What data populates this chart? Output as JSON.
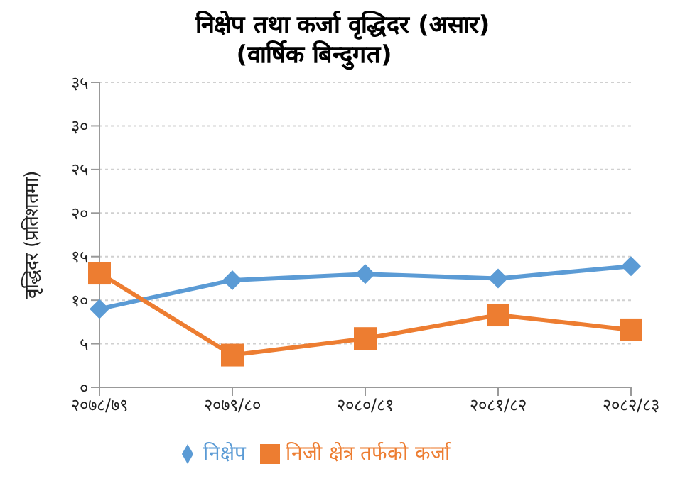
{
  "chart_data": {
    "type": "line",
    "title": "निक्षेप तथा कर्जा वृद्धिदर (असार)",
    "subtitle": "(वार्षिक बिन्दुगत)",
    "ylabel": "वृद्धिदर (प्रतिशतमा)",
    "categories": [
      "२०७८/७९",
      "२०७९/८०",
      "२०८०/८१",
      "२०८१/८२",
      "२०८२/८३"
    ],
    "series": [
      {
        "name": "निक्षेप",
        "color": "#5b9bd5",
        "marker": "diamond",
        "values": [
          9.0,
          12.3,
          13.0,
          12.5,
          13.9
        ]
      },
      {
        "name": "निजी क्षेत्र तर्फको कर्जा",
        "color": "#ed7d31",
        "marker": "square",
        "values": [
          13.1,
          3.7,
          5.6,
          8.3,
          6.6
        ]
      }
    ],
    "ylim": [
      0,
      35
    ],
    "yticks": [
      {
        "value": 0,
        "label": "०"
      },
      {
        "value": 5,
        "label": "५"
      },
      {
        "value": 10,
        "label": "१०"
      },
      {
        "value": 15,
        "label": "१५"
      },
      {
        "value": 20,
        "label": "२०"
      },
      {
        "value": 25,
        "label": "२५"
      },
      {
        "value": 30,
        "label": "३०"
      },
      {
        "value": 35,
        "label": "३५"
      }
    ],
    "grid": "y",
    "legend": "bottom"
  }
}
